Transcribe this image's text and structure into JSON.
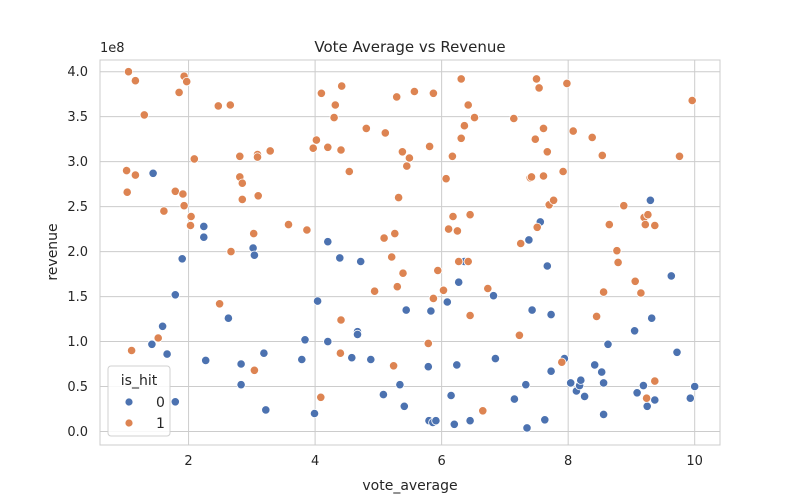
{
  "chart_data": {
    "type": "scatter",
    "title": "Vote Average vs Revenue",
    "xlabel": "vote_average",
    "ylabel": "revenue",
    "y_scale_label": "1e8",
    "xlim": [
      0.6,
      10.4
    ],
    "ylim": [
      -0.15,
      4.13
    ],
    "x_ticks": [
      2,
      4,
      6,
      8,
      10
    ],
    "y_ticks": [
      0.0,
      0.5,
      1.0,
      1.5,
      2.0,
      2.5,
      3.0,
      3.5,
      4.0
    ],
    "x_tick_labels": [
      "2",
      "4",
      "6",
      "8",
      "10"
    ],
    "y_tick_labels": [
      "0.0",
      "0.5",
      "1.0",
      "1.5",
      "2.0",
      "2.5",
      "3.0",
      "3.5",
      "4.0"
    ],
    "grid": true,
    "legend_position": "lower-left",
    "legend_title": "is_hit",
    "series": [
      {
        "name": "0",
        "color": "#4c72b0",
        "points": [
          [
            1.44,
            2.87
          ],
          [
            1.59,
            1.17
          ],
          [
            1.42,
            0.97
          ],
          [
            1.66,
            0.86
          ],
          [
            1.79,
            1.52
          ],
          [
            1.79,
            0.33
          ],
          [
            1.9,
            1.92
          ],
          [
            2.24,
            2.28
          ],
          [
            2.24,
            2.16
          ],
          [
            2.27,
            0.79
          ],
          [
            2.63,
            1.26
          ],
          [
            2.83,
            0.75
          ],
          [
            2.83,
            0.52
          ],
          [
            3.02,
            2.04
          ],
          [
            3.04,
            1.96
          ],
          [
            3.19,
            0.87
          ],
          [
            3.22,
            0.24
          ],
          [
            3.79,
            0.8
          ],
          [
            3.84,
            1.02
          ],
          [
            3.99,
            0.2
          ],
          [
            4.04,
            1.45
          ],
          [
            4.2,
            2.11
          ],
          [
            4.2,
            1.0
          ],
          [
            4.39,
            1.93
          ],
          [
            4.58,
            0.82
          ],
          [
            4.67,
            1.11
          ],
          [
            4.67,
            1.08
          ],
          [
            4.72,
            1.89
          ],
          [
            4.88,
            0.8
          ],
          [
            5.08,
            0.41
          ],
          [
            5.34,
            0.52
          ],
          [
            5.41,
            0.28
          ],
          [
            5.44,
            1.35
          ],
          [
            5.79,
            0.72
          ],
          [
            5.83,
            1.34
          ],
          [
            5.8,
            0.12
          ],
          [
            5.86,
            0.1
          ],
          [
            5.91,
            0.12
          ],
          [
            6.09,
            1.44
          ],
          [
            6.15,
            0.4
          ],
          [
            6.2,
            0.08
          ],
          [
            6.24,
            0.74
          ],
          [
            6.27,
            1.66
          ],
          [
            6.36,
            1.89
          ],
          [
            6.45,
            0.12
          ],
          [
            6.82,
            1.51
          ],
          [
            6.85,
            0.81
          ],
          [
            7.15,
            0.36
          ],
          [
            7.33,
            0.52
          ],
          [
            7.35,
            0.04
          ],
          [
            7.38,
            2.13
          ],
          [
            7.43,
            1.35
          ],
          [
            7.56,
            2.33
          ],
          [
            7.63,
            0.13
          ],
          [
            7.67,
            1.84
          ],
          [
            7.73,
            1.3
          ],
          [
            7.73,
            0.67
          ],
          [
            7.94,
            0.81
          ],
          [
            8.04,
            0.54
          ],
          [
            8.13,
            0.45
          ],
          [
            8.18,
            0.51
          ],
          [
            8.2,
            0.57
          ],
          [
            8.26,
            0.39
          ],
          [
            8.42,
            0.74
          ],
          [
            8.53,
            0.66
          ],
          [
            8.56,
            0.54
          ],
          [
            8.56,
            0.19
          ],
          [
            8.63,
            0.97
          ],
          [
            9.05,
            1.12
          ],
          [
            9.09,
            0.43
          ],
          [
            9.19,
            0.51
          ],
          [
            9.25,
            0.28
          ],
          [
            9.3,
            2.57
          ],
          [
            9.32,
            1.26
          ],
          [
            9.37,
            0.35
          ],
          [
            9.63,
            1.73
          ],
          [
            9.72,
            0.88
          ],
          [
            9.93,
            0.37
          ],
          [
            10.0,
            0.5
          ]
        ]
      },
      {
        "name": "1",
        "color": "#dd8452",
        "points": [
          [
            1.05,
            4.0
          ],
          [
            1.16,
            3.9
          ],
          [
            1.3,
            3.52
          ],
          [
            1.02,
            2.9
          ],
          [
            1.03,
            2.66
          ],
          [
            1.16,
            2.85
          ],
          [
            1.1,
            0.9
          ],
          [
            1.52,
            1.04
          ],
          [
            1.85,
            3.77
          ],
          [
            1.93,
            3.95
          ],
          [
            1.97,
            3.89
          ],
          [
            1.79,
            2.67
          ],
          [
            1.91,
            2.64
          ],
          [
            1.93,
            2.51
          ],
          [
            1.61,
            2.45
          ],
          [
            2.04,
            2.39
          ],
          [
            2.03,
            2.29
          ],
          [
            2.09,
            3.03
          ],
          [
            2.47,
            3.62
          ],
          [
            2.66,
            3.63
          ],
          [
            2.49,
            1.42
          ],
          [
            2.67,
            2.0
          ],
          [
            2.81,
            3.06
          ],
          [
            2.81,
            2.83
          ],
          [
            2.85,
            2.76
          ],
          [
            2.85,
            2.58
          ],
          [
            3.03,
            2.2
          ],
          [
            3.04,
            0.68
          ],
          [
            3.09,
            3.08
          ],
          [
            3.09,
            3.05
          ],
          [
            3.1,
            2.62
          ],
          [
            3.29,
            3.12
          ],
          [
            3.58,
            2.3
          ],
          [
            3.87,
            2.24
          ],
          [
            3.97,
            3.15
          ],
          [
            4.02,
            3.24
          ],
          [
            4.1,
            3.76
          ],
          [
            4.09,
            0.38
          ],
          [
            4.2,
            3.16
          ],
          [
            4.3,
            3.49
          ],
          [
            4.32,
            3.63
          ],
          [
            4.42,
            3.84
          ],
          [
            4.41,
            3.13
          ],
          [
            4.41,
            1.24
          ],
          [
            4.4,
            0.87
          ],
          [
            4.54,
            2.89
          ],
          [
            4.81,
            3.37
          ],
          [
            4.94,
            1.56
          ],
          [
            5.11,
            3.32
          ],
          [
            5.09,
            2.15
          ],
          [
            5.21,
            1.94
          ],
          [
            5.24,
            0.73
          ],
          [
            5.26,
            2.2
          ],
          [
            5.29,
            3.72
          ],
          [
            5.3,
            1.61
          ],
          [
            5.32,
            2.6
          ],
          [
            5.38,
            3.11
          ],
          [
            5.39,
            1.76
          ],
          [
            5.45,
            2.95
          ],
          [
            5.49,
            3.04
          ],
          [
            5.57,
            3.78
          ],
          [
            5.79,
            0.98
          ],
          [
            5.81,
            3.17
          ],
          [
            5.87,
            3.76
          ],
          [
            5.87,
            1.48
          ],
          [
            5.94,
            1.79
          ],
          [
            6.03,
            1.57
          ],
          [
            6.07,
            2.81
          ],
          [
            6.11,
            2.25
          ],
          [
            6.17,
            3.06
          ],
          [
            6.18,
            2.39
          ],
          [
            6.25,
            2.23
          ],
          [
            6.27,
            1.89
          ],
          [
            6.31,
            3.26
          ],
          [
            6.31,
            3.92
          ],
          [
            6.36,
            3.4
          ],
          [
            6.42,
            3.63
          ],
          [
            6.45,
            2.41
          ],
          [
            6.45,
            1.29
          ],
          [
            6.42,
            1.89
          ],
          [
            6.52,
            3.49
          ],
          [
            6.65,
            0.23
          ],
          [
            6.73,
            1.59
          ],
          [
            7.14,
            3.48
          ],
          [
            7.23,
            1.07
          ],
          [
            7.25,
            2.09
          ],
          [
            7.4,
            2.82
          ],
          [
            7.42,
            2.83
          ],
          [
            7.48,
            3.25
          ],
          [
            7.5,
            3.92
          ],
          [
            7.51,
            2.27
          ],
          [
            7.54,
            3.82
          ],
          [
            7.61,
            3.37
          ],
          [
            7.61,
            2.84
          ],
          [
            7.67,
            3.11
          ],
          [
            7.7,
            2.52
          ],
          [
            7.77,
            2.57
          ],
          [
            7.9,
            0.77
          ],
          [
            7.92,
            2.89
          ],
          [
            7.98,
            3.87
          ],
          [
            8.08,
            3.34
          ],
          [
            8.38,
            3.27
          ],
          [
            8.45,
            1.28
          ],
          [
            8.54,
            3.07
          ],
          [
            8.56,
            1.55
          ],
          [
            8.65,
            2.3
          ],
          [
            8.77,
            2.01
          ],
          [
            8.79,
            1.88
          ],
          [
            8.88,
            2.51
          ],
          [
            9.06,
            1.67
          ],
          [
            9.15,
            1.54
          ],
          [
            9.2,
            2.38
          ],
          [
            9.22,
            2.3
          ],
          [
            9.26,
            2.41
          ],
          [
            9.24,
            0.37
          ],
          [
            9.37,
            2.29
          ],
          [
            9.37,
            0.56
          ],
          [
            9.76,
            3.06
          ],
          [
            9.96,
            3.68
          ]
        ]
      }
    ]
  }
}
